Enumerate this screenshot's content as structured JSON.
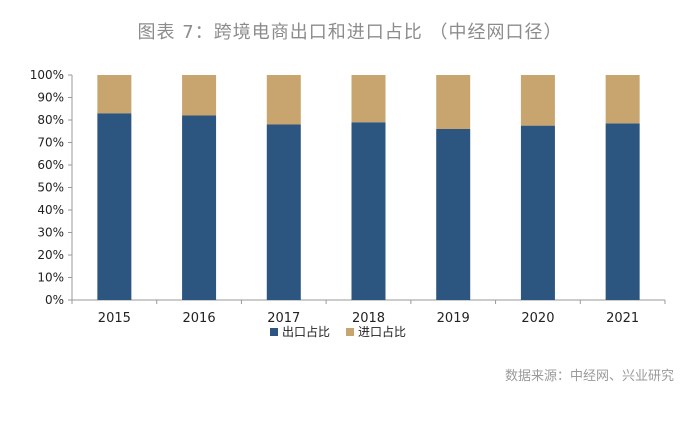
{
  "title": "图表 7：跨境电商出口和进口占比 （中经网口径）",
  "source": "数据来源：中经网、兴业研究",
  "colors": {
    "export": "#2c5580",
    "import": "#c8a56e",
    "axis": "#999999",
    "text": "#222222"
  },
  "chart_data": {
    "type": "bar",
    "stacked": true,
    "categories": [
      "2015",
      "2016",
      "2017",
      "2018",
      "2019",
      "2020",
      "2021"
    ],
    "series": [
      {
        "name": "出口占比",
        "values": [
          83,
          82,
          78,
          79,
          76,
          77.5,
          78.5
        ]
      },
      {
        "name": "进口占比",
        "values": [
          17,
          18,
          22,
          21,
          24,
          22.5,
          21.5
        ]
      }
    ],
    "ylim": [
      0,
      100
    ],
    "yticks": [
      "0%",
      "10%",
      "20%",
      "30%",
      "40%",
      "50%",
      "60%",
      "70%",
      "80%",
      "90%",
      "100%"
    ],
    "legend_position": "bottom",
    "title": "图表 7：跨境电商出口和进口占比 （中经网口径）",
    "xlabel": "",
    "ylabel": ""
  }
}
